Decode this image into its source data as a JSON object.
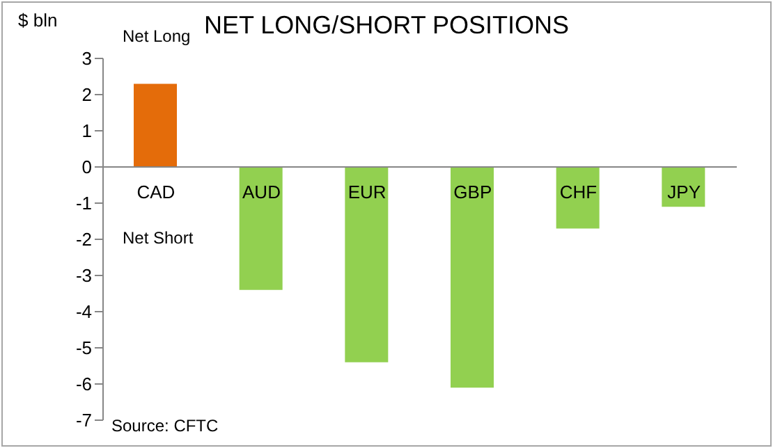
{
  "chart_data": {
    "type": "bar",
    "title": "NET LONG/SHORT POSITIONS",
    "ylabel": "$ bln",
    "categories": [
      "CAD",
      "AUD",
      "EUR",
      "GBP",
      "CHF",
      "JPY"
    ],
    "values": [
      2.3,
      -3.4,
      -5.4,
      -6.1,
      -1.7,
      -1.1
    ],
    "colors": [
      "#e46c0a",
      "#92d050",
      "#92d050",
      "#92d050",
      "#92d050",
      "#92d050"
    ],
    "ylim": [
      -7,
      3
    ],
    "yticks": [
      -7,
      -6,
      -5,
      -4,
      -3,
      -2,
      -1,
      0,
      1,
      2,
      3
    ],
    "annotations": [
      "Net Long",
      "Net Short",
      "Source: CFTC"
    ]
  }
}
